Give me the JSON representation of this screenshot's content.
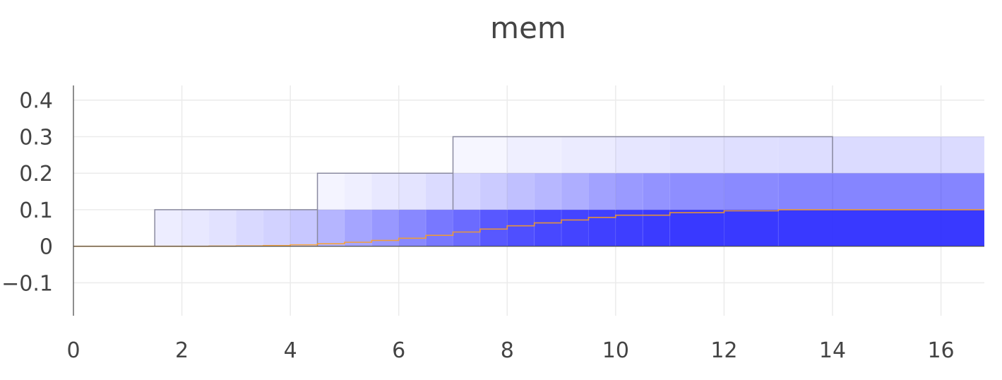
{
  "chart_data": {
    "type": "heatmap",
    "title": "mem",
    "xlabel": "",
    "ylabel": "",
    "xlim": [
      0,
      16.8
    ],
    "ylim": [
      -0.19,
      0.44
    ],
    "x_ticks": [
      "0",
      "2",
      "4",
      "6",
      "8",
      "10",
      "12",
      "14",
      "16"
    ],
    "y_ticks": [
      "0.4",
      "0.3",
      "0.2",
      "0.1",
      "0",
      "−0.1"
    ],
    "grid": true,
    "legend": "none",
    "colors": {
      "fill": "#1e1eff",
      "outline": "#8a8aa0",
      "line": "#ff9f1a",
      "grid": "#ebebeb",
      "axis": "#444444"
    },
    "bands": [
      {
        "y0": 0.0,
        "y1": 0.1,
        "x_start": 1.5,
        "outline_until": 4.5,
        "cells": [
          {
            "x0": 1.5,
            "x1": 2.0,
            "intensity": 0.08
          },
          {
            "x0": 2.0,
            "x1": 2.5,
            "intensity": 0.1
          },
          {
            "x0": 2.5,
            "x1": 3.0,
            "intensity": 0.13
          },
          {
            "x0": 3.0,
            "x1": 3.5,
            "intensity": 0.17
          },
          {
            "x0": 3.5,
            "x1": 4.0,
            "intensity": 0.2
          },
          {
            "x0": 4.0,
            "x1": 4.5,
            "intensity": 0.25
          },
          {
            "x0": 4.5,
            "x1": 5.0,
            "intensity": 0.33
          },
          {
            "x0": 5.0,
            "x1": 5.5,
            "intensity": 0.4
          },
          {
            "x0": 5.5,
            "x1": 6.0,
            "intensity": 0.46
          },
          {
            "x0": 6.0,
            "x1": 6.5,
            "intensity": 0.53
          },
          {
            "x0": 6.5,
            "x1": 7.0,
            "intensity": 0.6
          },
          {
            "x0": 7.0,
            "x1": 7.5,
            "intensity": 0.66
          },
          {
            "x0": 7.5,
            "x1": 8.0,
            "intensity": 0.74
          },
          {
            "x0": 8.0,
            "x1": 8.5,
            "intensity": 0.78
          },
          {
            "x0": 8.5,
            "x1": 9.0,
            "intensity": 0.81
          },
          {
            "x0": 9.0,
            "x1": 9.5,
            "intensity": 0.83
          },
          {
            "x0": 9.5,
            "x1": 10.0,
            "intensity": 0.85
          },
          {
            "x0": 10.0,
            "x1": 10.5,
            "intensity": 0.86
          },
          {
            "x0": 10.5,
            "x1": 11.0,
            "intensity": 0.87
          },
          {
            "x0": 11.0,
            "x1": 12.0,
            "intensity": 0.88
          },
          {
            "x0": 12.0,
            "x1": 13.0,
            "intensity": 0.88
          },
          {
            "x0": 13.0,
            "x1": 16.8,
            "intensity": 0.88
          }
        ]
      },
      {
        "y0": 0.1,
        "y1": 0.2,
        "x_start": 4.5,
        "outline_until": 7.0,
        "cells": [
          {
            "x0": 4.5,
            "x1": 5.0,
            "intensity": 0.05
          },
          {
            "x0": 5.0,
            "x1": 5.5,
            "intensity": 0.07
          },
          {
            "x0": 5.5,
            "x1": 6.0,
            "intensity": 0.1
          },
          {
            "x0": 6.0,
            "x1": 6.5,
            "intensity": 0.12
          },
          {
            "x0": 6.5,
            "x1": 7.0,
            "intensity": 0.16
          },
          {
            "x0": 7.0,
            "x1": 7.5,
            "intensity": 0.19
          },
          {
            "x0": 7.5,
            "x1": 8.0,
            "intensity": 0.23
          },
          {
            "x0": 8.0,
            "x1": 8.5,
            "intensity": 0.28
          },
          {
            "x0": 8.5,
            "x1": 9.0,
            "intensity": 0.32
          },
          {
            "x0": 9.0,
            "x1": 9.5,
            "intensity": 0.36
          },
          {
            "x0": 9.5,
            "x1": 10.0,
            "intensity": 0.41
          },
          {
            "x0": 10.0,
            "x1": 10.5,
            "intensity": 0.45
          },
          {
            "x0": 10.5,
            "x1": 11.0,
            "intensity": 0.48
          },
          {
            "x0": 11.0,
            "x1": 12.0,
            "intensity": 0.5
          },
          {
            "x0": 12.0,
            "x1": 13.0,
            "intensity": 0.52
          },
          {
            "x0": 13.0,
            "x1": 16.8,
            "intensity": 0.54
          }
        ]
      },
      {
        "y0": 0.2,
        "y1": 0.3,
        "x_start": 7.0,
        "outline_until": 14.0,
        "cells": [
          {
            "x0": 7.0,
            "x1": 8.0,
            "intensity": 0.04
          },
          {
            "x0": 8.0,
            "x1": 9.0,
            "intensity": 0.07
          },
          {
            "x0": 9.0,
            "x1": 10.0,
            "intensity": 0.09
          },
          {
            "x0": 10.0,
            "x1": 11.0,
            "intensity": 0.11
          },
          {
            "x0": 11.0,
            "x1": 12.0,
            "intensity": 0.13
          },
          {
            "x0": 12.0,
            "x1": 13.0,
            "intensity": 0.14
          },
          {
            "x0": 13.0,
            "x1": 14.0,
            "intensity": 0.15
          },
          {
            "x0": 14.0,
            "x1": 16.8,
            "intensity": 0.16
          }
        ]
      }
    ],
    "series": [
      {
        "type": "line",
        "color": "#ff9f1a",
        "x": [
          0,
          2.5,
          3.0,
          3.5,
          4.0,
          4.5,
          5.0,
          5.5,
          6.0,
          6.5,
          7.0,
          7.5,
          8.0,
          8.5,
          9.0,
          9.5,
          10.0,
          11.0,
          12.0,
          13.0,
          16.8
        ],
        "y": [
          0,
          0.0005,
          0.001,
          0.002,
          0.004,
          0.007,
          0.011,
          0.016,
          0.022,
          0.03,
          0.039,
          0.047,
          0.056,
          0.064,
          0.072,
          0.079,
          0.085,
          0.092,
          0.097,
          0.1,
          0.1
        ]
      }
    ]
  }
}
